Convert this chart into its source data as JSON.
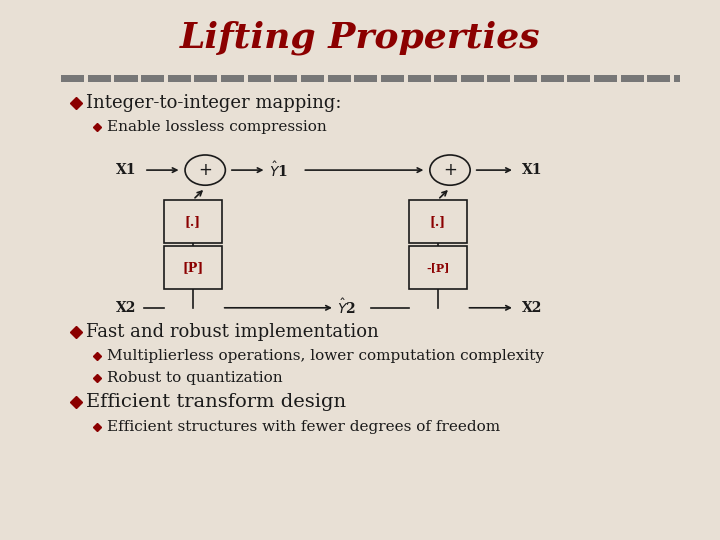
{
  "title": "Lifting Properties",
  "title_color": "#8B0000",
  "title_fontsize": 26,
  "bg_color": "#e8e0d5",
  "bg_color2": "#d4cbbf",
  "bullet_color": "#8B0000",
  "text_color": "#1a1a1a",
  "diagram_text_color": "#8B0000",
  "diagram_line_color": "#1a1a1a",
  "separator_color": "#777777",
  "bullet1": "Integer-to-integer mapping:",
  "bullet1_sub": "Enable lossless compression",
  "bullet2": "Fast and robust implementation",
  "bullet2_sub1": "Multiplierless operations, lower computation complexity",
  "bullet2_sub2": "Robust to quantization",
  "bullet3": "Efficient transform design",
  "bullet3_sub": "Efficient structures with fewer degrees of freedom",
  "font_main": 13,
  "font_sub": 11
}
